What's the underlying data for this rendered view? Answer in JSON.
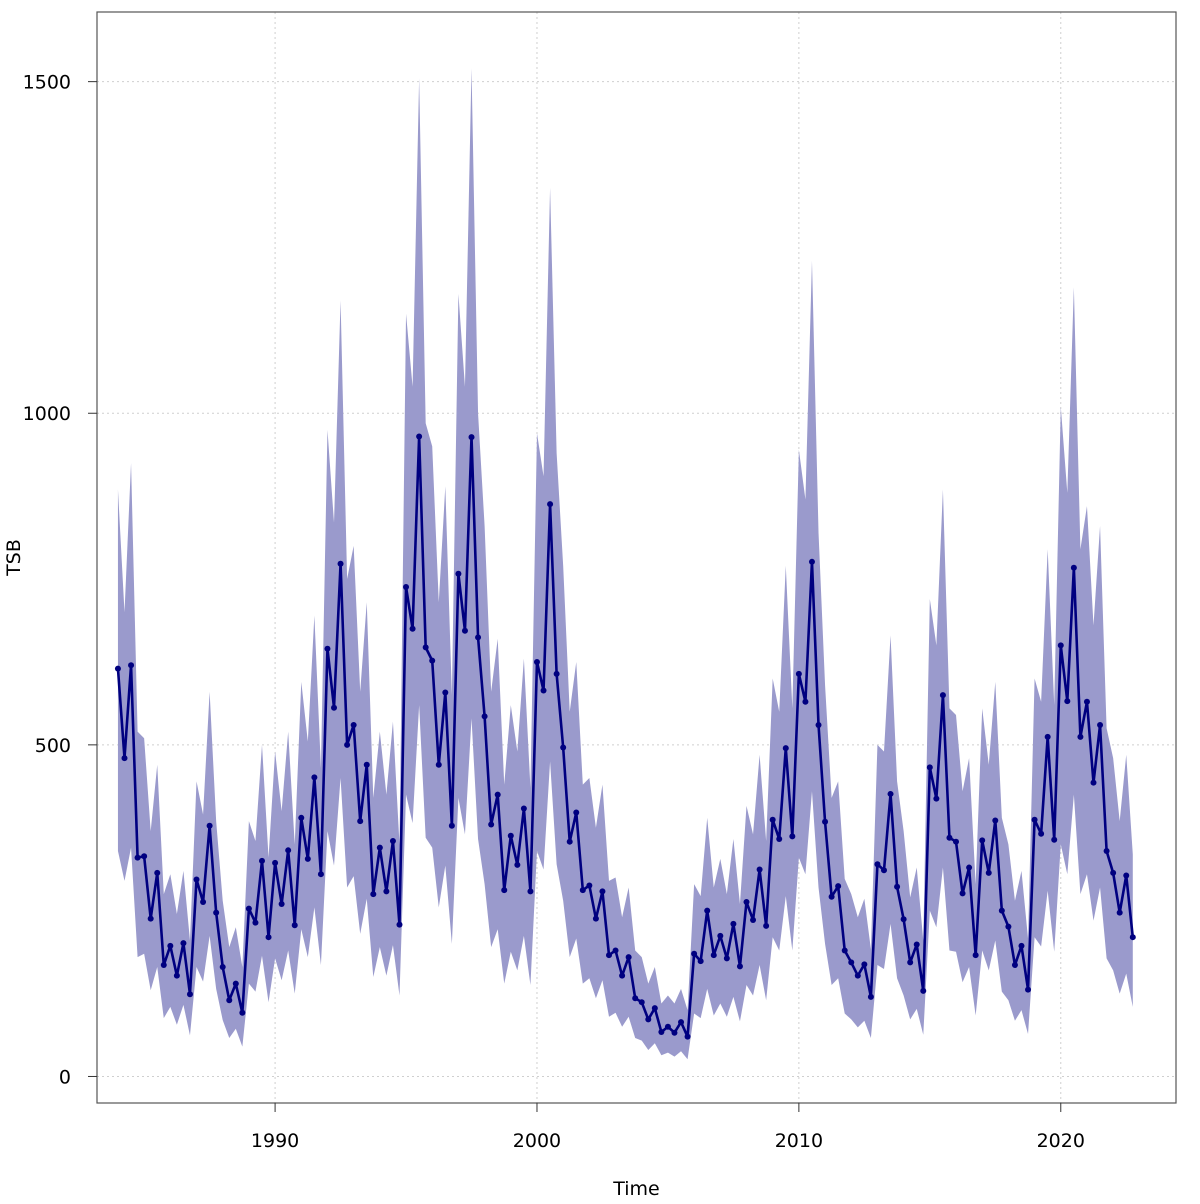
{
  "chart_data": {
    "type": "line",
    "title": "",
    "xlabel": "Time",
    "ylabel": "TSB",
    "xlim": [
      1983.2,
      2024.4
    ],
    "ylim": [
      -40,
      1605
    ],
    "x_ticks": [
      1990,
      2000,
      2010,
      2020
    ],
    "y_ticks": [
      0,
      500,
      1000,
      1500
    ],
    "grid": true,
    "line_color": "#000080",
    "band_color": "#9a9acc",
    "x_start": 1984.0,
    "x_step": 0.25,
    "series": [
      {
        "values": [
          615,
          480,
          620,
          330,
          332,
          238,
          307,
          168,
          197,
          152,
          201,
          124,
          297,
          263,
          378,
          247,
          165,
          115,
          140,
          96,
          253,
          232,
          325,
          210,
          322,
          260,
          341,
          228,
          390,
          328,
          451,
          305,
          645,
          556,
          773,
          500,
          530,
          385,
          470,
          275,
          345,
          279,
          355,
          229,
          738,
          675,
          965,
          647,
          627,
          470,
          579,
          378,
          758,
          672,
          964,
          662,
          543,
          380,
          425,
          281,
          363,
          319,
          404,
          279,
          625,
          582,
          863,
          607,
          496,
          354,
          398,
          281,
          288,
          238,
          279,
          183,
          190,
          152,
          180,
          118,
          112,
          86,
          103,
          67,
          75,
          66,
          82,
          60,
          185,
          174,
          250,
          183,
          212,
          178,
          230,
          166,
          263,
          236,
          312,
          227,
          387,
          358,
          495,
          362,
          607,
          565,
          776,
          530,
          384,
          271,
          287,
          190,
          172,
          152,
          169,
          120,
          320,
          311,
          426,
          286,
          237,
          172,
          199,
          129,
          466,
          419,
          575,
          360,
          354,
          276,
          315,
          183,
          356,
          307,
          386,
          250,
          226,
          168,
          197,
          131,
          387,
          366,
          512,
          357,
          650,
          566,
          767,
          512,
          565,
          443,
          530,
          340,
          307,
          247,
          303,
          210
        ],
        "lower": [
          340,
          295,
          345,
          180,
          185,
          130,
          165,
          88,
          105,
          78,
          108,
          62,
          165,
          143,
          212,
          132,
          85,
          58,
          72,
          45,
          140,
          128,
          182,
          112,
          178,
          145,
          190,
          125,
          222,
          180,
          255,
          168,
          370,
          318,
          450,
          285,
          302,
          215,
          268,
          150,
          195,
          152,
          198,
          122,
          425,
          382,
          560,
          360,
          345,
          255,
          318,
          200,
          420,
          365,
          540,
          358,
          290,
          195,
          222,
          140,
          188,
          160,
          212,
          138,
          340,
          312,
          475,
          320,
          265,
          180,
          208,
          140,
          148,
          118,
          145,
          90,
          96,
          75,
          90,
          58,
          54,
          40,
          50,
          32,
          36,
          30,
          38,
          26,
          95,
          88,
          132,
          92,
          110,
          90,
          120,
          83,
          138,
          122,
          168,
          115,
          210,
          190,
          272,
          190,
          330,
          305,
          430,
          285,
          200,
          138,
          148,
          95,
          86,
          74,
          84,
          58,
          168,
          162,
          230,
          148,
          122,
          86,
          102,
          63,
          250,
          225,
          315,
          190,
          188,
          142,
          165,
          92,
          190,
          160,
          205,
          128,
          115,
          84,
          100,
          64,
          210,
          196,
          280,
          188,
          350,
          305,
          425,
          275,
          305,
          235,
          285,
          178,
          160,
          125,
          155,
          105
        ],
        "upper": [
          885,
          700,
          925,
          520,
          510,
          370,
          470,
          275,
          305,
          245,
          310,
          205,
          445,
          395,
          580,
          385,
          265,
          195,
          225,
          165,
          385,
          355,
          500,
          330,
          490,
          400,
          520,
          350,
          595,
          505,
          695,
          465,
          975,
          835,
          1170,
          750,
          800,
          580,
          715,
          420,
          520,
          425,
          535,
          350,
          1150,
          1040,
          1505,
          985,
          950,
          715,
          890,
          575,
          1180,
          1040,
          1520,
          1000,
          830,
          580,
          660,
          440,
          560,
          490,
          630,
          435,
          970,
          905,
          1340,
          940,
          770,
          550,
          625,
          440,
          450,
          375,
          440,
          295,
          300,
          240,
          285,
          190,
          180,
          140,
          165,
          110,
          122,
          110,
          132,
          100,
          290,
          272,
          390,
          285,
          328,
          275,
          358,
          260,
          408,
          365,
          485,
          355,
          600,
          550,
          770,
          555,
          945,
          870,
          1230,
          820,
          590,
          420,
          445,
          298,
          275,
          240,
          268,
          192,
          500,
          490,
          665,
          445,
          370,
          270,
          315,
          205,
          720,
          650,
          885,
          555,
          545,
          430,
          480,
          290,
          555,
          470,
          595,
          390,
          350,
          265,
          310,
          208,
          600,
          565,
          795,
          560,
          1010,
          880,
          1190,
          795,
          860,
          680,
          830,
          525,
          480,
          385,
          485,
          335
        ]
      }
    ]
  }
}
